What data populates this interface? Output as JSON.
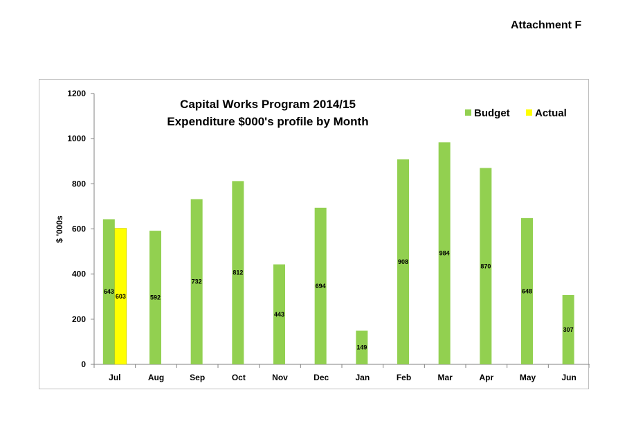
{
  "header": {
    "attachment_label": "Attachment F"
  },
  "chart_data": {
    "type": "bar",
    "title_line1": "Capital Works Program 2014/15",
    "title_line2": "Expenditure $000's profile by Month",
    "xlabel": "",
    "ylabel": "$ '000s",
    "ylim": [
      0,
      1200
    ],
    "yticks": [
      0,
      200,
      400,
      600,
      800,
      1000,
      1200
    ],
    "categories": [
      "Jul",
      "Aug",
      "Sep",
      "Oct",
      "Nov",
      "Dec",
      "Jan",
      "Feb",
      "Mar",
      "Apr",
      "May",
      "Jun"
    ],
    "series": [
      {
        "name": "Budget",
        "color": "#92d050",
        "values": [
          643,
          592,
          732,
          812,
          443,
          694,
          149,
          908,
          984,
          870,
          648,
          307
        ]
      },
      {
        "name": "Actual",
        "color": "#ffff00",
        "values": [
          603,
          null,
          null,
          null,
          null,
          null,
          null,
          null,
          null,
          null,
          null,
          null
        ]
      }
    ],
    "legend_position": "top-right",
    "grid": false
  }
}
